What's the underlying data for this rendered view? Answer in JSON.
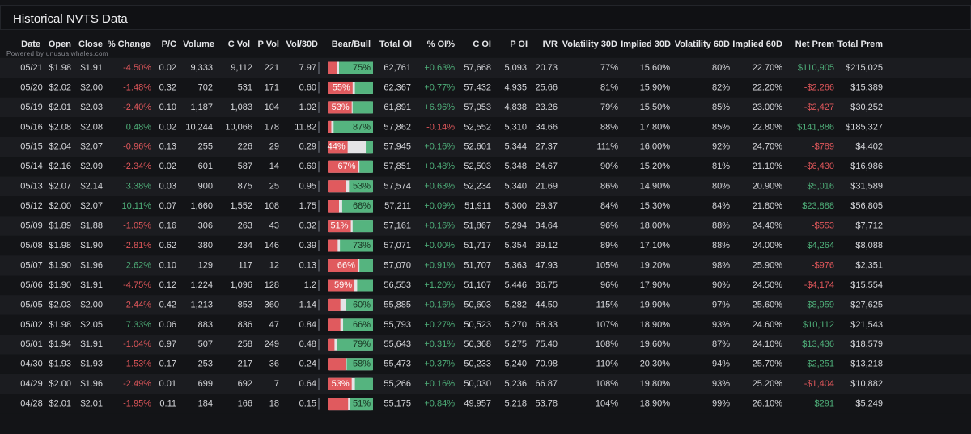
{
  "title": "Historical NVTS Data",
  "powered_by": "Powered by unusualwhales.com",
  "table": {
    "columns": [
      "Date",
      "Open",
      "Close",
      "% Change",
      "P/C",
      "Volume",
      "C Vol",
      "P Vol",
      "Vol/30D",
      "Bear/Bull",
      "Total OI",
      "% OI%",
      "C OI",
      "P OI",
      "IVR",
      "Volatility 30D",
      "Implied 30D",
      "Volatility 60D",
      "Implied 60D",
      "Net Prem",
      "Total Prem"
    ],
    "rows": [
      [
        "05/21",
        "$1.98",
        "$1.91",
        "-4.50%",
        "0.02",
        "9,333",
        "9,112",
        "221",
        "7.97",
        {
          "bear": 20,
          "bull": 75,
          "label": "75%"
        },
        "62,761",
        "+0.63%",
        "57,668",
        "5,093",
        "20.73",
        "77%",
        "15.60%",
        "80%",
        "22.70%",
        "$110,905",
        "$215,025"
      ],
      [
        "05/20",
        "$2.02",
        "$2.00",
        "-1.48%",
        "0.32",
        "702",
        "531",
        "171",
        "0.60",
        {
          "bear": 55,
          "bull": 40,
          "label": "55%"
        },
        "62,367",
        "+0.77%",
        "57,432",
        "4,935",
        "25.66",
        "81%",
        "15.90%",
        "82%",
        "22.20%",
        "-$2,266",
        "$15,389"
      ],
      [
        "05/19",
        "$2.01",
        "$2.03",
        "-2.40%",
        "0.10",
        "1,187",
        "1,083",
        "104",
        "1.02",
        {
          "bear": 53,
          "bull": 45,
          "label": "53%"
        },
        "61,891",
        "+6.96%",
        "57,053",
        "4,838",
        "23.26",
        "79%",
        "15.50%",
        "85%",
        "23.00%",
        "-$2,427",
        "$30,252"
      ],
      [
        "05/16",
        "$2.08",
        "$2.08",
        "0.48%",
        "0.02",
        "10,244",
        "10,066",
        "178",
        "11.82",
        {
          "bear": 8,
          "bull": 87,
          "label": "87%"
        },
        "57,862",
        "-0.14%",
        "52,552",
        "5,310",
        "34.66",
        "88%",
        "17.80%",
        "85%",
        "22.80%",
        "$141,886",
        "$185,327"
      ],
      [
        "05/15",
        "$2.04",
        "$2.07",
        "-0.96%",
        "0.13",
        "255",
        "226",
        "29",
        "0.29",
        {
          "bear": 44,
          "bull": 16,
          "label": "44%"
        },
        "57,945",
        "+0.16%",
        "52,601",
        "5,344",
        "27.37",
        "111%",
        "16.00%",
        "92%",
        "24.70%",
        "-$789",
        "$4,402"
      ],
      [
        "05/14",
        "$2.16",
        "$2.09",
        "-2.34%",
        "0.02",
        "601",
        "587",
        "14",
        "0.69",
        {
          "bear": 67,
          "bull": 30,
          "label": "67%"
        },
        "57,851",
        "+0.48%",
        "52,503",
        "5,348",
        "24.67",
        "90%",
        "15.20%",
        "81%",
        "21.10%",
        "-$6,430",
        "$16,986"
      ],
      [
        "05/13",
        "$2.07",
        "$2.14",
        "3.38%",
        "0.03",
        "900",
        "875",
        "25",
        "0.95",
        {
          "bear": 40,
          "bull": 53,
          "label": "53%"
        },
        "57,574",
        "+0.63%",
        "52,234",
        "5,340",
        "21.69",
        "86%",
        "14.90%",
        "80%",
        "20.90%",
        "$5,016",
        "$31,589"
      ],
      [
        "05/12",
        "$2.00",
        "$2.07",
        "10.11%",
        "0.07",
        "1,660",
        "1,552",
        "108",
        "1.75",
        {
          "bear": 25,
          "bull": 68,
          "label": "68%"
        },
        "57,211",
        "+0.09%",
        "51,911",
        "5,300",
        "29.37",
        "84%",
        "15.30%",
        "84%",
        "21.80%",
        "$23,888",
        "$56,805"
      ],
      [
        "05/09",
        "$1.89",
        "$1.88",
        "-1.05%",
        "0.16",
        "306",
        "263",
        "43",
        "0.32",
        {
          "bear": 51,
          "bull": 45,
          "label": "51%"
        },
        "57,161",
        "+0.16%",
        "51,867",
        "5,294",
        "34.64",
        "96%",
        "18.00%",
        "88%",
        "24.40%",
        "-$553",
        "$7,712"
      ],
      [
        "05/08",
        "$1.98",
        "$1.90",
        "-2.81%",
        "0.62",
        "380",
        "234",
        "146",
        "0.39",
        {
          "bear": 22,
          "bull": 73,
          "label": "73%"
        },
        "57,071",
        "+0.00%",
        "51,717",
        "5,354",
        "39.12",
        "89%",
        "17.10%",
        "88%",
        "24.00%",
        "$4,264",
        "$8,088"
      ],
      [
        "05/07",
        "$1.90",
        "$1.96",
        "2.62%",
        "0.10",
        "129",
        "117",
        "12",
        "0.13",
        {
          "bear": 66,
          "bull": 30,
          "label": "66%"
        },
        "57,070",
        "+0.91%",
        "51,707",
        "5,363",
        "47.93",
        "105%",
        "19.20%",
        "98%",
        "25.90%",
        "-$976",
        "$2,351"
      ],
      [
        "05/06",
        "$1.90",
        "$1.91",
        "-4.75%",
        "0.12",
        "1,224",
        "1,096",
        "128",
        "1.2",
        {
          "bear": 59,
          "bull": 35,
          "label": "59%"
        },
        "56,553",
        "+1.20%",
        "51,107",
        "5,446",
        "36.75",
        "96%",
        "17.90%",
        "90%",
        "24.50%",
        "-$4,174",
        "$15,554"
      ],
      [
        "05/05",
        "$2.03",
        "$2.00",
        "-2.44%",
        "0.42",
        "1,213",
        "853",
        "360",
        "1.14",
        {
          "bear": 28,
          "bull": 60,
          "label": "60%"
        },
        "55,885",
        "+0.16%",
        "50,603",
        "5,282",
        "44.50",
        "115%",
        "19.90%",
        "97%",
        "25.60%",
        "$8,959",
        "$27,625"
      ],
      [
        "05/02",
        "$1.98",
        "$2.05",
        "7.33%",
        "0.06",
        "883",
        "836",
        "47",
        "0.84",
        {
          "bear": 28,
          "bull": 66,
          "label": "66%"
        },
        "55,793",
        "+0.27%",
        "50,523",
        "5,270",
        "68.33",
        "107%",
        "18.90%",
        "93%",
        "24.60%",
        "$10,112",
        "$21,543"
      ],
      [
        "05/01",
        "$1.94",
        "$1.91",
        "-1.04%",
        "0.97",
        "507",
        "258",
        "249",
        "0.48",
        {
          "bear": 15,
          "bull": 79,
          "label": "79%"
        },
        "55,643",
        "+0.31%",
        "50,368",
        "5,275",
        "75.40",
        "108%",
        "19.60%",
        "87%",
        "24.10%",
        "$13,436",
        "$18,579"
      ],
      [
        "04/30",
        "$1.93",
        "$1.93",
        "-1.53%",
        "0.17",
        "253",
        "217",
        "36",
        "0.24",
        {
          "bear": 40,
          "bull": 58,
          "label": "58%"
        },
        "55,473",
        "+0.37%",
        "50,233",
        "5,240",
        "70.98",
        "110%",
        "20.30%",
        "94%",
        "25.70%",
        "$2,251",
        "$13,218"
      ],
      [
        "04/29",
        "$2.00",
        "$1.96",
        "-2.49%",
        "0.01",
        "699",
        "692",
        "7",
        "0.64",
        {
          "bear": 53,
          "bull": 40,
          "label": "53%"
        },
        "55,266",
        "+0.16%",
        "50,030",
        "5,236",
        "66.87",
        "108%",
        "19.80%",
        "93%",
        "25.20%",
        "-$1,404",
        "$10,882"
      ],
      [
        "04/28",
        "$2.01",
        "$2.01",
        "-1.95%",
        "0.11",
        "184",
        "166",
        "18",
        "0.15",
        {
          "bear": 45,
          "bull": 51,
          "label": "51%"
        },
        "55,175",
        "+0.84%",
        "49,957",
        "5,218",
        "53.78",
        "104%",
        "18.90%",
        "99%",
        "26.10%",
        "$291",
        "$5,249"
      ]
    ]
  }
}
